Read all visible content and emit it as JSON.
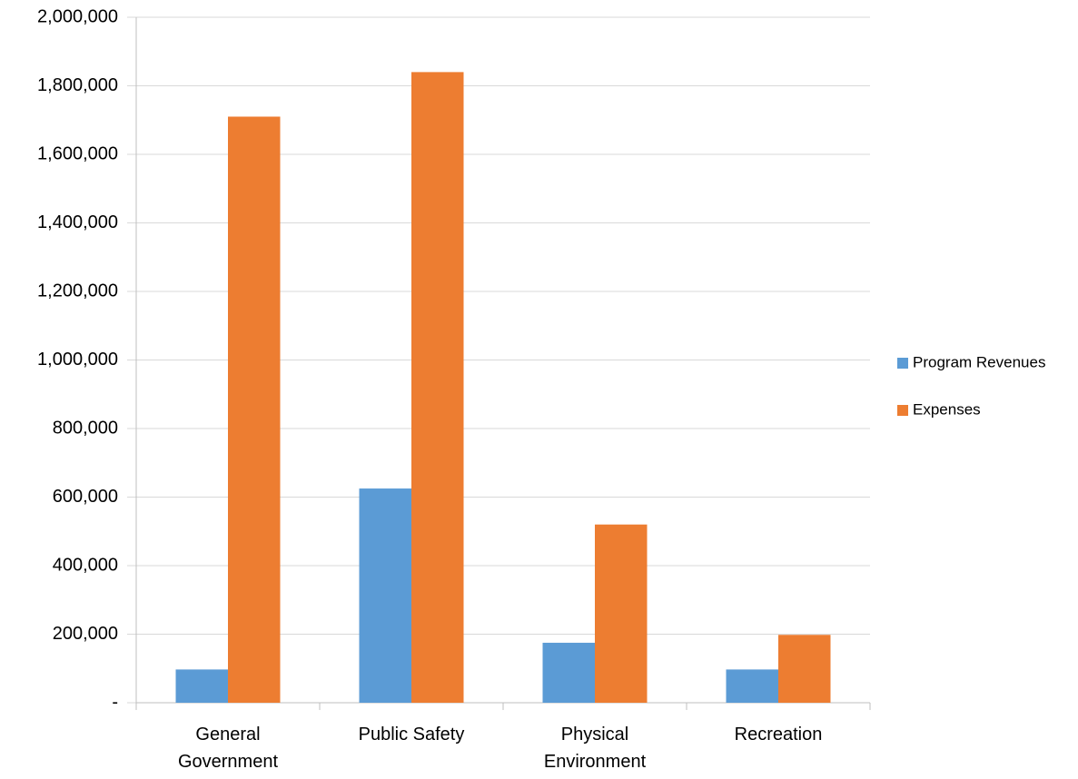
{
  "chart_data": {
    "type": "bar",
    "categories": [
      "General Government",
      "Public Safety",
      "Physical Environment",
      "Recreation"
    ],
    "series": [
      {
        "name": "Program Revenues",
        "color": "#5b9bd5",
        "values": [
          97000,
          625000,
          175000,
          97000
        ]
      },
      {
        "name": "Expenses",
        "color": "#ed7d31",
        "values": [
          1710000,
          1840000,
          520000,
          198000
        ]
      }
    ],
    "ylim": [
      0,
      2000000
    ],
    "yticks": [
      {
        "value": 0,
        "label": "-"
      },
      {
        "value": 200000,
        "label": "200,000"
      },
      {
        "value": 400000,
        "label": "400,000"
      },
      {
        "value": 600000,
        "label": "600,000"
      },
      {
        "value": 800000,
        "label": "800,000"
      },
      {
        "value": 1000000,
        "label": "1,000,000"
      },
      {
        "value": 1200000,
        "label": "1,200,000"
      },
      {
        "value": 1400000,
        "label": "1,400,000"
      },
      {
        "value": 1600000,
        "label": "1,600,000"
      },
      {
        "value": 1800000,
        "label": "1,800,000"
      },
      {
        "value": 2000000,
        "label": "2,000,000"
      }
    ],
    "grid": true,
    "legend": "right"
  }
}
